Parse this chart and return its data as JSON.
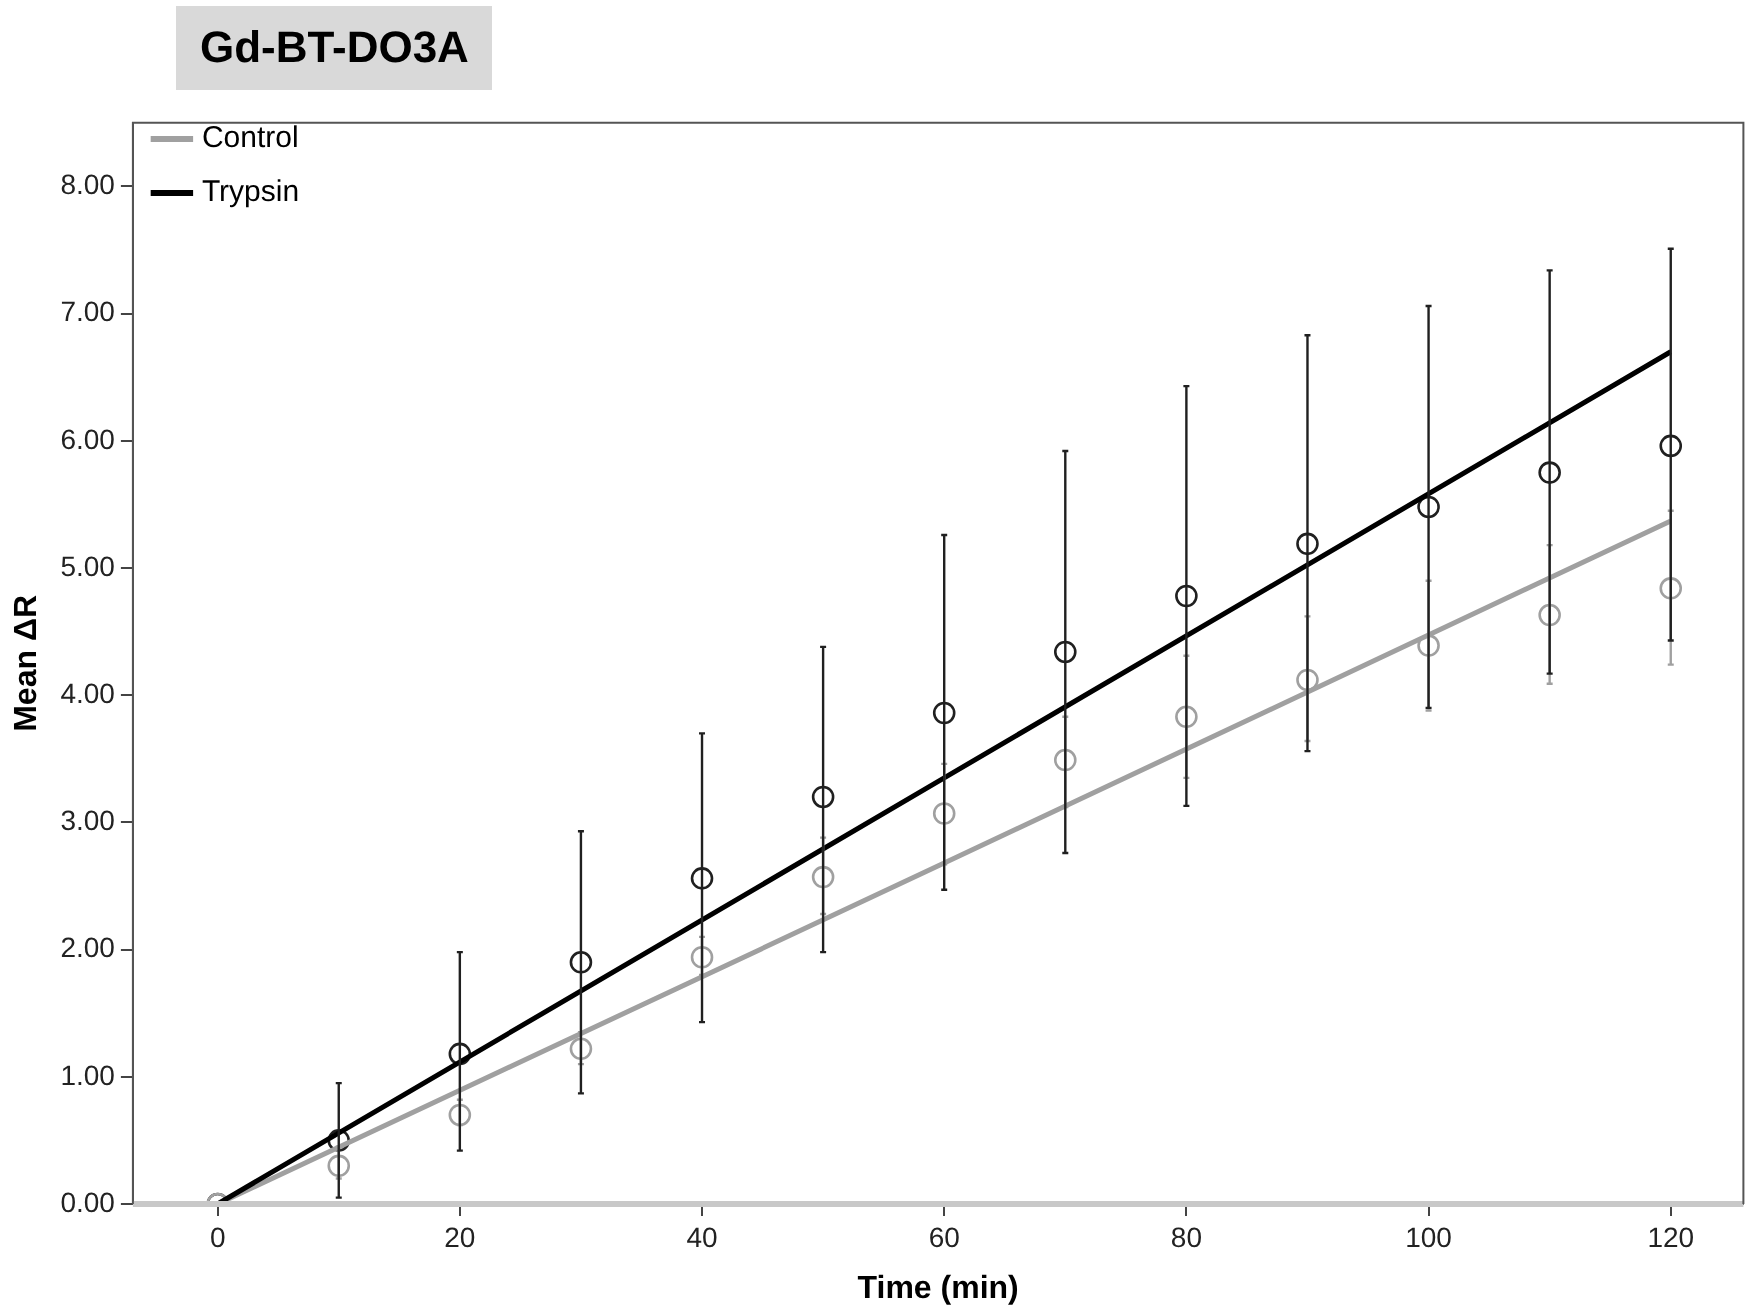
{
  "chart_data": {
    "type": "scatter",
    "title": "Gd-BT-DO3A",
    "xlabel": "Time (min)",
    "ylabel": "Mean ΔR",
    "x": [
      0,
      10,
      20,
      30,
      40,
      50,
      60,
      70,
      80,
      90,
      100,
      110,
      120
    ],
    "series": [
      {
        "type": "scatter",
        "color": "#a0a0a0",
        "marker": "circle",
        "values": [
          0,
          0.3,
          0.7,
          1.22,
          1.94,
          2.57,
          3.07,
          3.49,
          3.83,
          4.12,
          4.39,
          4.63,
          4.84
        ],
        "errors": [
          null,
          [
            0.2,
            0.45
          ],
          [
            0.62,
            0.82
          ],
          [
            1.1,
            1.35
          ],
          [
            1.8,
            2.1
          ],
          [
            2.28,
            2.88
          ],
          [
            2.67,
            3.46
          ],
          [
            3.12,
            3.83
          ],
          [
            3.35,
            4.31
          ],
          [
            3.64,
            4.62
          ],
          [
            3.88,
            4.9
          ],
          [
            4.09,
            5.18
          ],
          [
            4.24,
            5.45
          ]
        ]
      },
      {
        "type": "scatter",
        "color": "#202020",
        "marker": "circle",
        "values": [
          0,
          0.5,
          1.18,
          1.9,
          2.56,
          3.2,
          3.86,
          4.34,
          4.78,
          5.19,
          5.48,
          5.75,
          5.96
        ],
        "errors": [
          null,
          [
            0.05,
            0.95
          ],
          [
            0.42,
            1.98
          ],
          [
            0.87,
            2.93
          ],
          [
            1.43,
            3.7
          ],
          [
            1.98,
            4.38
          ],
          [
            2.47,
            5.26
          ],
          [
            2.76,
            5.92
          ],
          [
            3.13,
            6.43
          ],
          [
            3.56,
            6.83
          ],
          [
            3.9,
            7.06
          ],
          [
            4.17,
            7.34
          ],
          [
            4.43,
            7.51
          ]
        ]
      },
      {
        "type": "line",
        "name": "Control",
        "color": "#a0a0a0",
        "marker": "none",
        "x": [
          0,
          60,
          120
        ],
        "values": [
          0,
          2.68,
          5.37
        ]
      },
      {
        "type": "line",
        "name": "Trypsin",
        "color": "#000000",
        "marker": "none",
        "x": [
          0,
          60,
          120
        ],
        "values": [
          0,
          3.35,
          6.7
        ]
      }
    ],
    "xlim": [
      -7,
      126
    ],
    "ylim": [
      0,
      8.5
    ],
    "xticks": [
      0,
      20,
      40,
      60,
      80,
      100,
      120
    ],
    "yticks": [
      {
        "value": 0,
        "label": "0.00"
      },
      {
        "value": 1,
        "label": "1.00"
      },
      {
        "value": 2,
        "label": "2.00"
      },
      {
        "value": 3,
        "label": "3.00"
      },
      {
        "value": 4,
        "label": "4.00"
      },
      {
        "value": 5,
        "label": "5.00"
      },
      {
        "value": 6,
        "label": "6.00"
      },
      {
        "value": 7,
        "label": "7.00"
      },
      {
        "value": 8,
        "label": "8.00"
      }
    ],
    "ref_lines": [
      {
        "axis": "y",
        "value": 0,
        "color": "#c8c8c8"
      }
    ],
    "grid": false,
    "legend": "top left"
  }
}
